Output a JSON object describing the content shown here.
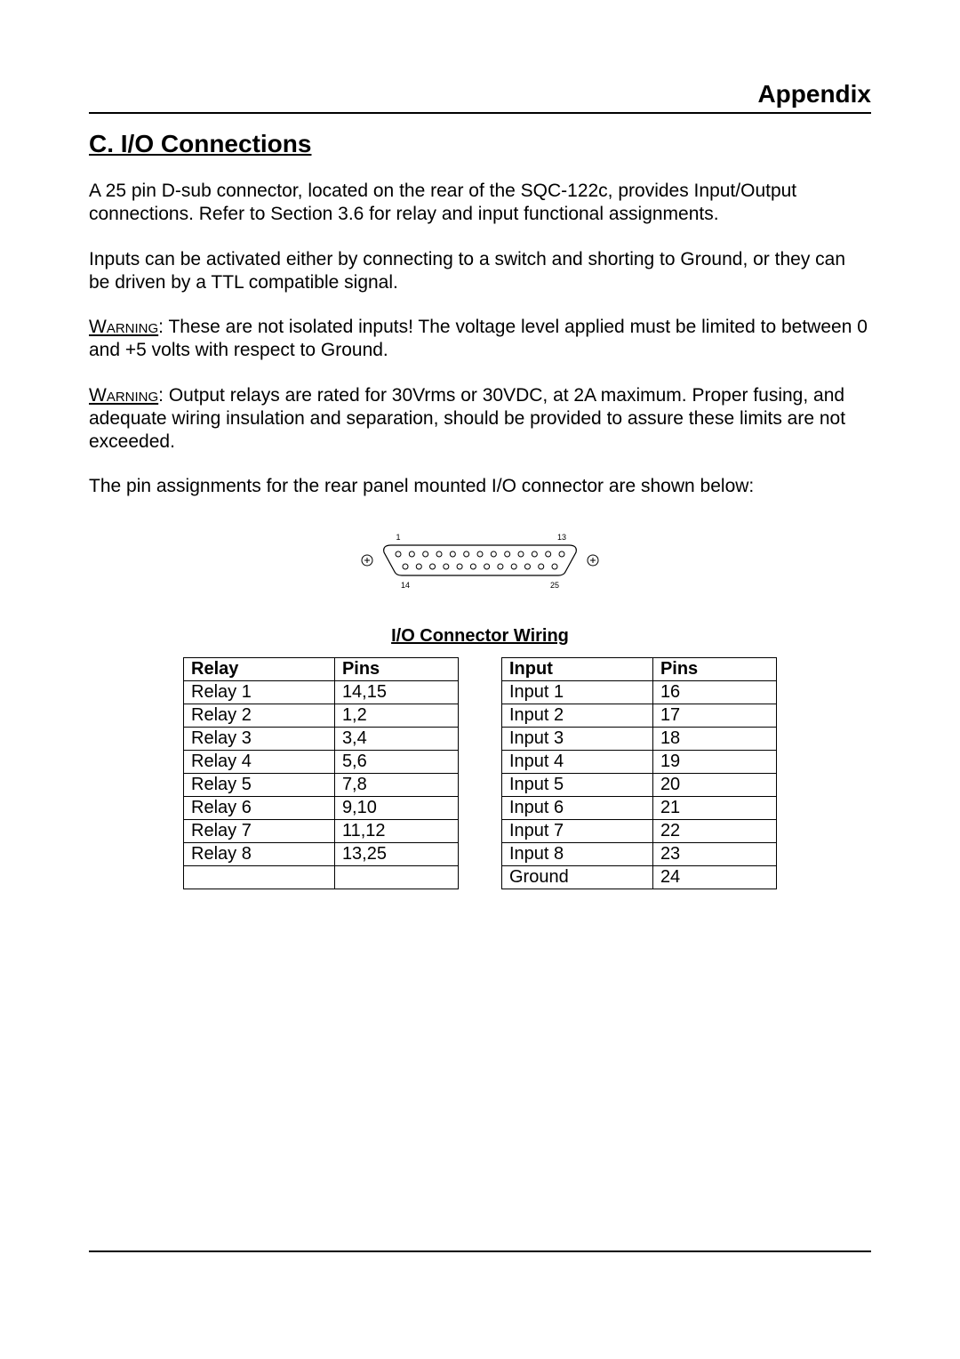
{
  "header": {
    "appendix": "Appendix"
  },
  "section": {
    "title": "C.  I/O Connections"
  },
  "paragraphs": {
    "p1": "A 25 pin D-sub connector, located on the rear of the SQC-122c, provides Input/Output connections.  Refer to Section 3.6 for relay and input functional assignments.",
    "p2": "Inputs can be activated either by connecting to a switch and shorting to Ground, or they can be driven by a TTL compatible signal.",
    "p3_prefix": "Warning",
    "p3": ":  These are not isolated inputs!  The voltage level applied must be limited to between 0 and +5 volts with respect to Ground.",
    "p4_prefix": "Warning",
    "p4": ":  Output relays are rated for 30Vrms or 30VDC, at 2A maximum.  Proper fusing, and adequate wiring insulation and separation, should be provided to assure these limits are not exceeded.",
    "p5": "The pin assignments for the rear panel mounted I/O connector are shown below:"
  },
  "diagram": {
    "type": "connector",
    "top_pins": 13,
    "bottom_pins": 12,
    "labels": {
      "tl": "1",
      "tr": "13",
      "bl": "14",
      "br": "25"
    },
    "outline_color": "#000000",
    "pin_stroke": "#000000",
    "label_fontsize": 9
  },
  "table_title": "I/O Connector Wiring",
  "relay_table": {
    "headers": [
      "Relay",
      "Pins"
    ],
    "rows": [
      [
        "Relay 1",
        "14,15"
      ],
      [
        "Relay 2",
        "1,2"
      ],
      [
        "Relay 3",
        "3,4"
      ],
      [
        "Relay 4",
        "5,6"
      ],
      [
        "Relay 5",
        "7,8"
      ],
      [
        "Relay 6",
        "9,10"
      ],
      [
        "Relay 7",
        "11,12"
      ],
      [
        "Relay 8",
        "13,25"
      ],
      [
        "",
        ""
      ]
    ]
  },
  "input_table": {
    "headers": [
      "Input",
      "Pins"
    ],
    "rows": [
      [
        "Input 1",
        "16"
      ],
      [
        "Input 2",
        "17"
      ],
      [
        "Input 3",
        "18"
      ],
      [
        "Input 4",
        "19"
      ],
      [
        "Input 5",
        "20"
      ],
      [
        "Input 6",
        "21"
      ],
      [
        "Input 7",
        "22"
      ],
      [
        "Input 8",
        "23"
      ],
      [
        "Ground",
        "24"
      ]
    ]
  }
}
